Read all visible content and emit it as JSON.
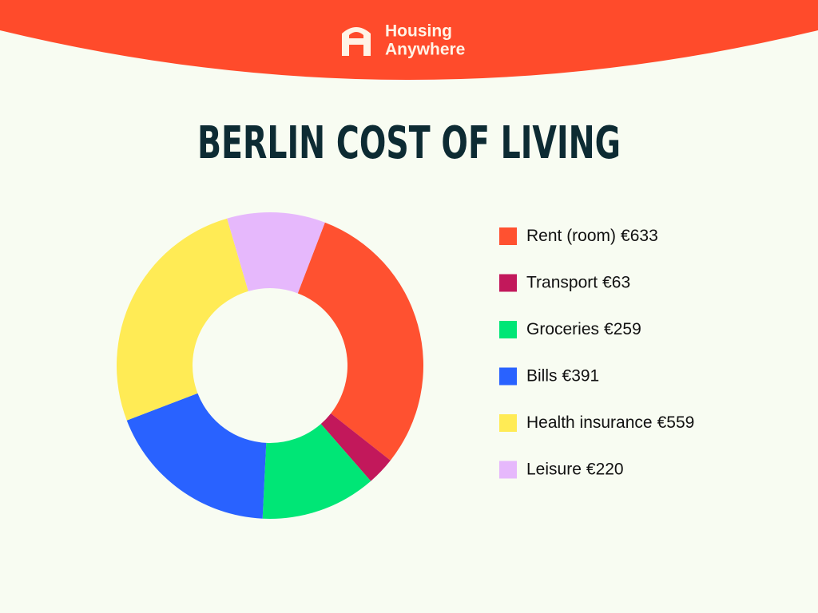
{
  "header": {
    "brand": [
      "Housing",
      "Anywhere"
    ]
  },
  "chart_data": {
    "type": "donut",
    "title": "BERLIN COST OF LIVING",
    "categories": [
      "Rent (room)",
      "Transport",
      "Groceries",
      "Bills",
      "Health insurance",
      "Leisure"
    ],
    "values": [
      633,
      63,
      259,
      391,
      559,
      220
    ],
    "value_labels": [
      "€633",
      "€63",
      "€259",
      "€391",
      "€559",
      "€220"
    ],
    "colors": [
      "#ff5130",
      "#c2185b",
      "#00e676",
      "#2962ff",
      "#ffeb55",
      "#e6b8fc"
    ],
    "legend": "right"
  }
}
